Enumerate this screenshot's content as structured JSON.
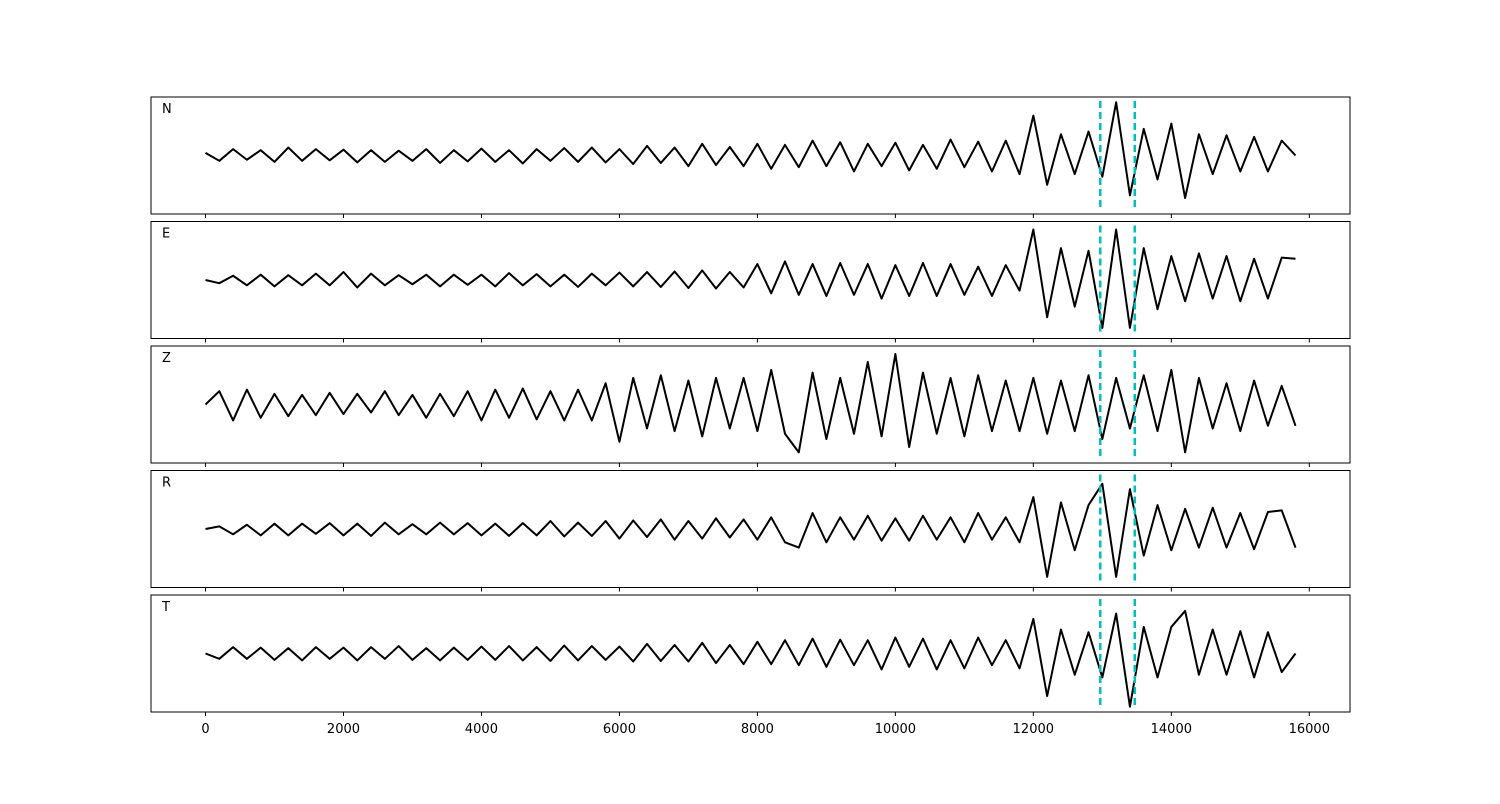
{
  "chart_data": {
    "type": "line",
    "x": [
      0,
      200,
      400,
      600,
      800,
      1000,
      1200,
      1400,
      1600,
      1800,
      2000,
      2200,
      2400,
      2600,
      2800,
      3000,
      3200,
      3400,
      3600,
      3800,
      4000,
      4200,
      4400,
      4600,
      4800,
      5000,
      5200,
      5400,
      5600,
      5800,
      6000,
      6200,
      6400,
      6600,
      6800,
      7000,
      7200,
      7400,
      7600,
      7800,
      8000,
      8200,
      8400,
      8600,
      8800,
      9000,
      9200,
      9400,
      9600,
      9800,
      10000,
      10200,
      10400,
      10600,
      10800,
      11000,
      11200,
      11400,
      11600,
      11800,
      12000,
      12200,
      12400,
      12600,
      12800,
      13000,
      13200,
      13400,
      13600,
      13800,
      14000,
      14200,
      14400,
      14600,
      14800,
      15000,
      15200,
      15400,
      15600,
      15800
    ],
    "series": [
      {
        "name": "N",
        "color": "#000000",
        "values": [
          0.05,
          -0.1,
          0.12,
          -0.08,
          0.1,
          -0.12,
          0.15,
          -0.1,
          0.12,
          -0.09,
          0.11,
          -0.13,
          0.1,
          -0.12,
          0.09,
          -0.1,
          0.12,
          -0.14,
          0.1,
          -0.11,
          0.13,
          -0.12,
          0.1,
          -0.15,
          0.12,
          -0.1,
          0.14,
          -0.12,
          0.15,
          -0.13,
          0.12,
          -0.16,
          0.18,
          -0.14,
          0.15,
          -0.2,
          0.22,
          -0.18,
          0.16,
          -0.2,
          0.22,
          -0.25,
          0.2,
          -0.22,
          0.28,
          -0.2,
          0.25,
          -0.3,
          0.22,
          -0.2,
          0.24,
          -0.28,
          0.2,
          -0.25,
          0.3,
          -0.22,
          0.26,
          -0.3,
          0.28,
          -0.35,
          0.75,
          -0.55,
          0.4,
          -0.35,
          0.45,
          -0.4,
          1.0,
          -0.75,
          0.5,
          -0.45,
          0.6,
          -0.8,
          0.4,
          -0.35,
          0.38,
          -0.3,
          0.35,
          -0.3,
          0.28,
          0.0
        ]
      },
      {
        "name": "E",
        "color": "#000000",
        "values": [
          0.0,
          -0.06,
          0.08,
          -0.1,
          0.1,
          -0.12,
          0.09,
          -0.1,
          0.12,
          -0.1,
          0.15,
          -0.14,
          0.12,
          -0.1,
          0.09,
          -0.08,
          0.1,
          -0.12,
          0.1,
          -0.09,
          0.1,
          -0.12,
          0.13,
          -0.1,
          0.11,
          -0.12,
          0.1,
          -0.13,
          0.12,
          -0.1,
          0.14,
          -0.12,
          0.15,
          -0.13,
          0.16,
          -0.15,
          0.18,
          -0.16,
          0.15,
          -0.14,
          0.3,
          -0.25,
          0.35,
          -0.28,
          0.3,
          -0.3,
          0.32,
          -0.28,
          0.3,
          -0.35,
          0.28,
          -0.3,
          0.32,
          -0.3,
          0.3,
          -0.28,
          0.25,
          -0.3,
          0.28,
          -0.2,
          0.95,
          -0.7,
          0.6,
          -0.5,
          0.55,
          -0.9,
          0.95,
          -0.9,
          0.6,
          -0.55,
          0.45,
          -0.4,
          0.5,
          -0.35,
          0.45,
          -0.4,
          0.4,
          -0.35,
          0.42,
          0.4
        ]
      },
      {
        "name": "Z",
        "color": "#000000",
        "values": [
          0.0,
          0.25,
          -0.3,
          0.28,
          -0.25,
          0.2,
          -0.22,
          0.18,
          -0.2,
          0.22,
          -0.18,
          0.2,
          -0.15,
          0.25,
          -0.2,
          0.18,
          -0.25,
          0.2,
          -0.22,
          0.25,
          -0.3,
          0.28,
          -0.25,
          0.3,
          -0.28,
          0.25,
          -0.3,
          0.28,
          -0.3,
          0.4,
          -0.7,
          0.5,
          -0.45,
          0.55,
          -0.5,
          0.45,
          -0.6,
          0.5,
          -0.45,
          0.5,
          -0.5,
          0.65,
          -0.55,
          -0.9,
          0.6,
          -0.65,
          0.5,
          -0.55,
          0.8,
          -0.6,
          0.95,
          -0.8,
          0.6,
          -0.55,
          0.5,
          -0.6,
          0.55,
          -0.5,
          0.45,
          -0.5,
          0.5,
          -0.55,
          0.45,
          -0.5,
          0.55,
          -0.65,
          0.5,
          -0.45,
          0.55,
          -0.5,
          0.65,
          -0.9,
          0.5,
          -0.45,
          0.4,
          -0.5,
          0.45,
          -0.4,
          0.35,
          -0.4
        ]
      },
      {
        "name": "R",
        "color": "#000000",
        "values": [
          0.0,
          0.05,
          -0.1,
          0.08,
          -0.12,
          0.1,
          -0.12,
          0.1,
          -0.09,
          0.11,
          -0.12,
          0.1,
          -0.13,
          0.12,
          -0.1,
          0.09,
          -0.1,
          0.12,
          -0.1,
          0.11,
          -0.12,
          0.1,
          -0.13,
          0.11,
          -0.12,
          0.15,
          -0.14,
          0.12,
          -0.13,
          0.15,
          -0.18,
          0.16,
          -0.15,
          0.18,
          -0.2,
          0.15,
          -0.18,
          0.2,
          -0.16,
          0.18,
          -0.2,
          0.22,
          -0.25,
          -0.35,
          0.3,
          -0.25,
          0.22,
          -0.2,
          0.25,
          -0.22,
          0.2,
          -0.22,
          0.25,
          -0.2,
          0.22,
          -0.25,
          0.3,
          -0.2,
          0.22,
          -0.25,
          0.6,
          -0.9,
          0.5,
          -0.4,
          0.45,
          0.85,
          -0.9,
          0.75,
          -0.5,
          0.45,
          -0.4,
          0.38,
          -0.35,
          0.4,
          -0.35,
          0.3,
          -0.38,
          0.32,
          0.35,
          -0.35
        ]
      },
      {
        "name": "T",
        "color": "#000000",
        "values": [
          0.0,
          -0.1,
          0.12,
          -0.1,
          0.11,
          -0.12,
          0.1,
          -0.13,
          0.12,
          -0.1,
          0.11,
          -0.13,
          0.12,
          -0.1,
          0.14,
          -0.12,
          0.1,
          -0.13,
          0.11,
          -0.12,
          0.13,
          -0.12,
          0.14,
          -0.13,
          0.12,
          -0.14,
          0.15,
          -0.13,
          0.14,
          -0.12,
          0.13,
          -0.15,
          0.18,
          -0.14,
          0.16,
          -0.15,
          0.2,
          -0.18,
          0.16,
          -0.2,
          0.22,
          -0.2,
          0.25,
          -0.22,
          0.28,
          -0.25,
          0.26,
          -0.22,
          0.25,
          -0.3,
          0.3,
          -0.25,
          0.28,
          -0.3,
          0.25,
          -0.28,
          0.3,
          -0.22,
          0.25,
          -0.28,
          0.65,
          -0.8,
          0.45,
          -0.4,
          0.4,
          -0.45,
          0.75,
          -1.0,
          0.5,
          -0.45,
          0.5,
          0.8,
          -0.4,
          0.45,
          -0.4,
          0.42,
          -0.45,
          0.4,
          -0.35,
          0.0
        ]
      }
    ],
    "xlim": [
      -790,
      16590
    ],
    "xticks": [
      0,
      2000,
      4000,
      6000,
      8000,
      10000,
      12000,
      14000,
      16000
    ],
    "ylim": [
      -1.1,
      1.1
    ],
    "vlines": [
      12970,
      13470
    ],
    "vline_color": "#00bfbf"
  }
}
